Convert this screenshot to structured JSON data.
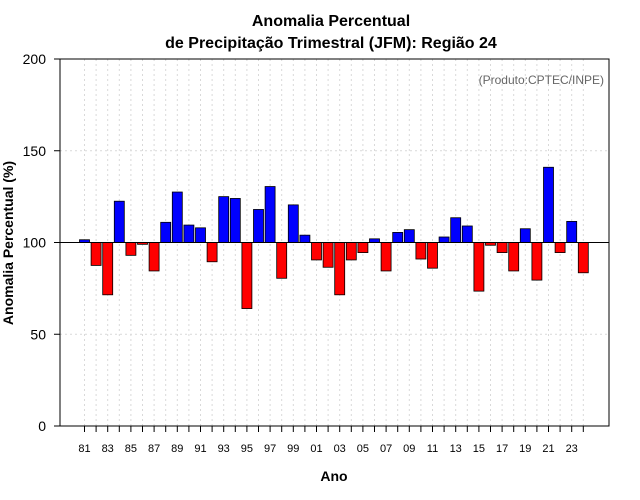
{
  "chart_data": {
    "type": "bar",
    "title_line1": "Anomalia Percentual",
    "title_line2": "de Precipitação Trimestral (JFM): Região 24",
    "xlabel": "Ano",
    "ylabel": "Anomalia Percentual (%)",
    "credit": "(Produto:CPTEC/INPE)",
    "ylim": [
      0,
      200
    ],
    "yticks": [
      0,
      50,
      100,
      150,
      200
    ],
    "baseline": 100,
    "grid": true,
    "colors": {
      "above": "#0000ff",
      "below": "#ff0000"
    },
    "categories": [
      "81",
      "82",
      "83",
      "84",
      "85",
      "86",
      "87",
      "88",
      "89",
      "90",
      "91",
      "92",
      "93",
      "94",
      "95",
      "96",
      "97",
      "98",
      "99",
      "00",
      "01",
      "02",
      "03",
      "04",
      "05",
      "06",
      "07",
      "08",
      "09",
      "10",
      "11",
      "12",
      "13",
      "14",
      "15",
      "16",
      "17",
      "18",
      "19",
      "20",
      "21",
      "22",
      "23",
      "24"
    ],
    "values": [
      101.5,
      87.5,
      71.5,
      122.5,
      93.0,
      99.0,
      84.5,
      111.0,
      127.5,
      109.5,
      108.0,
      89.5,
      125.0,
      124.0,
      64.0,
      118.0,
      130.5,
      80.5,
      120.5,
      104.0,
      90.5,
      86.5,
      71.5,
      90.5,
      94.5,
      102.0,
      84.5,
      105.5,
      107.0,
      91.0,
      86.0,
      103.0,
      113.5,
      109.0,
      73.5,
      98.5,
      94.5,
      84.5,
      107.5,
      79.5,
      141.0,
      94.5,
      111.5,
      83.5
    ],
    "xtick_labels": [
      "81",
      "83",
      "85",
      "87",
      "89",
      "91",
      "93",
      "95",
      "97",
      "99",
      "01",
      "03",
      "05",
      "07",
      "09",
      "11",
      "13",
      "15",
      "17",
      "19",
      "21",
      "23"
    ]
  }
}
